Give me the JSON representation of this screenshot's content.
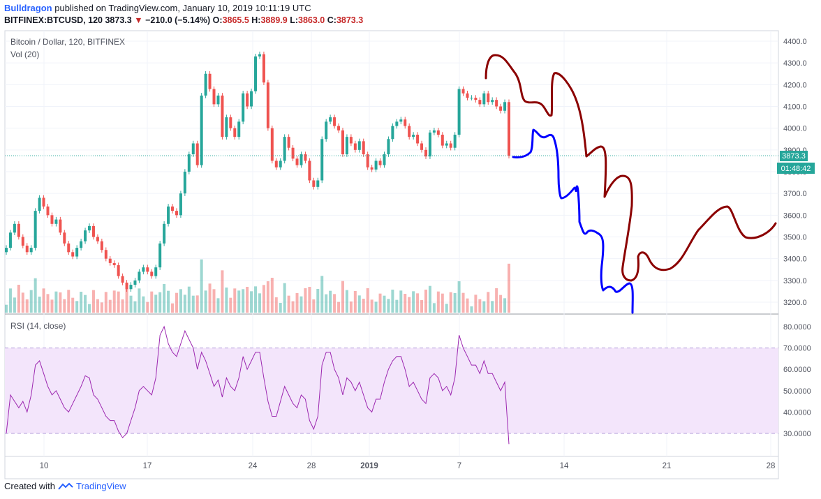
{
  "header": {
    "author": "Bulldragon",
    "published_text": "published on TradingView.com, January 10, 2019 10:11:19 UTC",
    "symbol_line": "BITFINEX:BTCUSD, 120",
    "last": "3873.3",
    "change": "−210.0 (−5.14%)",
    "open_label": "O:",
    "open": "3865.5",
    "high_label": "H:",
    "high": "3889.9",
    "low_label": "L:",
    "low": "3863.0",
    "close_label": "C:",
    "close": "3873.3"
  },
  "price_pane": {
    "title": "Bitcoin / Dollar, 120, BITFINEX",
    "volume_label": "Vol (20)",
    "price_tag": "3873.3",
    "countdown_tag": "01:48:42",
    "y_ticks": [
      "4400.0",
      "4300.0",
      "4200.0",
      "4100.0",
      "4000.0",
      "3900.0",
      "3800.0",
      "3700.0",
      "3600.0",
      "3500.0",
      "3400.0",
      "3300.0",
      "3200.0"
    ]
  },
  "rsi_pane": {
    "title": "RSI (14, close)",
    "y_ticks": [
      "80.0000",
      "70.0000",
      "60.0000",
      "50.0000",
      "40.0000",
      "30.0000"
    ]
  },
  "x_ticks": [
    "10",
    "17",
    "24",
    "28",
    "2019",
    "7",
    "14",
    "21",
    "28"
  ],
  "footer": {
    "created_with": "Created with",
    "brand": "TradingView"
  },
  "colors": {
    "up": "#26a69a",
    "down": "#ef5350",
    "rsi": "#9c27b0",
    "rsi_band": "#f3e5fb",
    "drawing_red": "#8b0000",
    "drawing_blue": "#0000ff",
    "accent": "#2962ff"
  },
  "chart_data": {
    "type": "candlestick",
    "symbol": "BITFINEX:BTCUSD",
    "interval": "120",
    "ylim": [
      3150,
      4450
    ],
    "close_series_approx": [
      [
        0,
        3450
      ],
      [
        6,
        3520
      ],
      [
        12,
        3560
      ],
      [
        18,
        3500
      ],
      [
        24,
        3460
      ],
      [
        30,
        3430
      ],
      [
        36,
        3450
      ],
      [
        42,
        3620
      ],
      [
        48,
        3680
      ],
      [
        54,
        3640
      ],
      [
        60,
        3600
      ],
      [
        66,
        3560
      ],
      [
        72,
        3580
      ],
      [
        78,
        3520
      ],
      [
        84,
        3470
      ],
      [
        90,
        3430
      ],
      [
        96,
        3410
      ],
      [
        102,
        3450
      ],
      [
        108,
        3480
      ],
      [
        114,
        3530
      ],
      [
        120,
        3550
      ],
      [
        126,
        3500
      ],
      [
        132,
        3480
      ],
      [
        138,
        3440
      ],
      [
        144,
        3400
      ],
      [
        150,
        3380
      ],
      [
        156,
        3370
      ],
      [
        162,
        3320
      ],
      [
        168,
        3290
      ],
      [
        174,
        3260
      ],
      [
        180,
        3280
      ],
      [
        186,
        3300
      ],
      [
        192,
        3340
      ],
      [
        198,
        3360
      ],
      [
        204,
        3340
      ],
      [
        210,
        3320
      ],
      [
        216,
        3360
      ],
      [
        222,
        3470
      ],
      [
        228,
        3560
      ],
      [
        234,
        3640
      ],
      [
        240,
        3620
      ],
      [
        246,
        3600
      ],
      [
        252,
        3700
      ],
      [
        258,
        3800
      ],
      [
        264,
        3880
      ],
      [
        270,
        3930
      ],
      [
        276,
        3830
      ],
      [
        282,
        4150
      ],
      [
        288,
        4250
      ],
      [
        294,
        4180
      ],
      [
        300,
        4110
      ],
      [
        306,
        4150
      ],
      [
        312,
        3960
      ],
      [
        318,
        4050
      ],
      [
        324,
        4000
      ],
      [
        330,
        3960
      ],
      [
        336,
        4030
      ],
      [
        342,
        4160
      ],
      [
        348,
        4100
      ],
      [
        354,
        4170
      ],
      [
        360,
        4330
      ],
      [
        366,
        4340
      ],
      [
        372,
        4210
      ],
      [
        378,
        4000
      ],
      [
        384,
        3850
      ],
      [
        390,
        3820
      ],
      [
        396,
        3850
      ],
      [
        402,
        3960
      ],
      [
        408,
        3910
      ],
      [
        414,
        3860
      ],
      [
        420,
        3830
      ],
      [
        426,
        3880
      ],
      [
        432,
        3850
      ],
      [
        438,
        3760
      ],
      [
        444,
        3730
      ],
      [
        450,
        3760
      ],
      [
        456,
        3950
      ],
      [
        462,
        4030
      ],
      [
        468,
        4050
      ],
      [
        474,
        4010
      ],
      [
        480,
        3990
      ],
      [
        486,
        3880
      ],
      [
        492,
        3960
      ],
      [
        498,
        3930
      ],
      [
        504,
        3900
      ],
      [
        510,
        3940
      ],
      [
        516,
        3880
      ],
      [
        522,
        3820
      ],
      [
        528,
        3810
      ],
      [
        534,
        3850
      ],
      [
        540,
        3830
      ],
      [
        546,
        3880
      ],
      [
        552,
        3950
      ],
      [
        558,
        4010
      ],
      [
        564,
        4030
      ],
      [
        570,
        4040
      ],
      [
        576,
        4010
      ],
      [
        582,
        3960
      ],
      [
        588,
        3970
      ],
      [
        594,
        3930
      ],
      [
        600,
        3900
      ],
      [
        606,
        3870
      ],
      [
        612,
        3980
      ],
      [
        618,
        3990
      ],
      [
        624,
        3970
      ],
      [
        630,
        3920
      ],
      [
        636,
        3930
      ],
      [
        642,
        3910
      ],
      [
        648,
        3970
      ],
      [
        654,
        4180
      ],
      [
        660,
        4160
      ],
      [
        666,
        4140
      ],
      [
        672,
        4140
      ],
      [
        678,
        4130
      ],
      [
        684,
        4110
      ],
      [
        690,
        4160
      ],
      [
        696,
        4120
      ],
      [
        702,
        4130
      ],
      [
        708,
        4100
      ],
      [
        714,
        4080
      ],
      [
        720,
        4120
      ],
      [
        726,
        3873
      ]
    ],
    "rsi_series_approx": [
      [
        0,
        30
      ],
      [
        6,
        48
      ],
      [
        12,
        45
      ],
      [
        18,
        42
      ],
      [
        24,
        45
      ],
      [
        30,
        40
      ],
      [
        36,
        48
      ],
      [
        42,
        62
      ],
      [
        48,
        64
      ],
      [
        54,
        58
      ],
      [
        60,
        52
      ],
      [
        66,
        48
      ],
      [
        72,
        50
      ],
      [
        78,
        46
      ],
      [
        84,
        42
      ],
      [
        90,
        40
      ],
      [
        96,
        44
      ],
      [
        102,
        48
      ],
      [
        108,
        52
      ],
      [
        114,
        57
      ],
      [
        120,
        56
      ],
      [
        126,
        48
      ],
      [
        132,
        46
      ],
      [
        138,
        42
      ],
      [
        144,
        38
      ],
      [
        150,
        36
      ],
      [
        156,
        36
      ],
      [
        162,
        31
      ],
      [
        168,
        28
      ],
      [
        174,
        30
      ],
      [
        180,
        36
      ],
      [
        186,
        42
      ],
      [
        192,
        50
      ],
      [
        198,
        52
      ],
      [
        204,
        50
      ],
      [
        210,
        48
      ],
      [
        216,
        56
      ],
      [
        222,
        76
      ],
      [
        228,
        80
      ],
      [
        234,
        72
      ],
      [
        240,
        68
      ],
      [
        246,
        66
      ],
      [
        252,
        72
      ],
      [
        258,
        78
      ],
      [
        264,
        74
      ],
      [
        270,
        70
      ],
      [
        276,
        60
      ],
      [
        282,
        68
      ],
      [
        288,
        64
      ],
      [
        294,
        58
      ],
      [
        300,
        52
      ],
      [
        306,
        55
      ],
      [
        312,
        47
      ],
      [
        318,
        56
      ],
      [
        324,
        52
      ],
      [
        330,
        50
      ],
      [
        336,
        56
      ],
      [
        342,
        66
      ],
      [
        348,
        60
      ],
      [
        354,
        64
      ],
      [
        360,
        68
      ],
      [
        366,
        68
      ],
      [
        372,
        56
      ],
      [
        378,
        45
      ],
      [
        384,
        38
      ],
      [
        390,
        38
      ],
      [
        396,
        45
      ],
      [
        402,
        52
      ],
      [
        408,
        48
      ],
      [
        414,
        44
      ],
      [
        420,
        42
      ],
      [
        426,
        48
      ],
      [
        432,
        46
      ],
      [
        438,
        36
      ],
      [
        444,
        32
      ],
      [
        450,
        38
      ],
      [
        456,
        62
      ],
      [
        462,
        68
      ],
      [
        468,
        68
      ],
      [
        474,
        60
      ],
      [
        480,
        56
      ],
      [
        486,
        48
      ],
      [
        492,
        56
      ],
      [
        498,
        54
      ],
      [
        504,
        50
      ],
      [
        510,
        54
      ],
      [
        516,
        48
      ],
      [
        522,
        42
      ],
      [
        528,
        40
      ],
      [
        534,
        46
      ],
      [
        540,
        46
      ],
      [
        546,
        54
      ],
      [
        552,
        60
      ],
      [
        558,
        64
      ],
      [
        564,
        66
      ],
      [
        570,
        66
      ],
      [
        576,
        60
      ],
      [
        582,
        52
      ],
      [
        588,
        54
      ],
      [
        594,
        50
      ],
      [
        600,
        46
      ],
      [
        606,
        44
      ],
      [
        612,
        56
      ],
      [
        618,
        58
      ],
      [
        624,
        56
      ],
      [
        630,
        50
      ],
      [
        636,
        52
      ],
      [
        642,
        48
      ],
      [
        648,
        56
      ],
      [
        654,
        76
      ],
      [
        660,
        70
      ],
      [
        666,
        66
      ],
      [
        672,
        62
      ],
      [
        678,
        62
      ],
      [
        684,
        58
      ],
      [
        690,
        64
      ],
      [
        696,
        58
      ],
      [
        702,
        58
      ],
      [
        708,
        54
      ],
      [
        714,
        50
      ],
      [
        720,
        54
      ],
      [
        726,
        25
      ]
    ]
  }
}
